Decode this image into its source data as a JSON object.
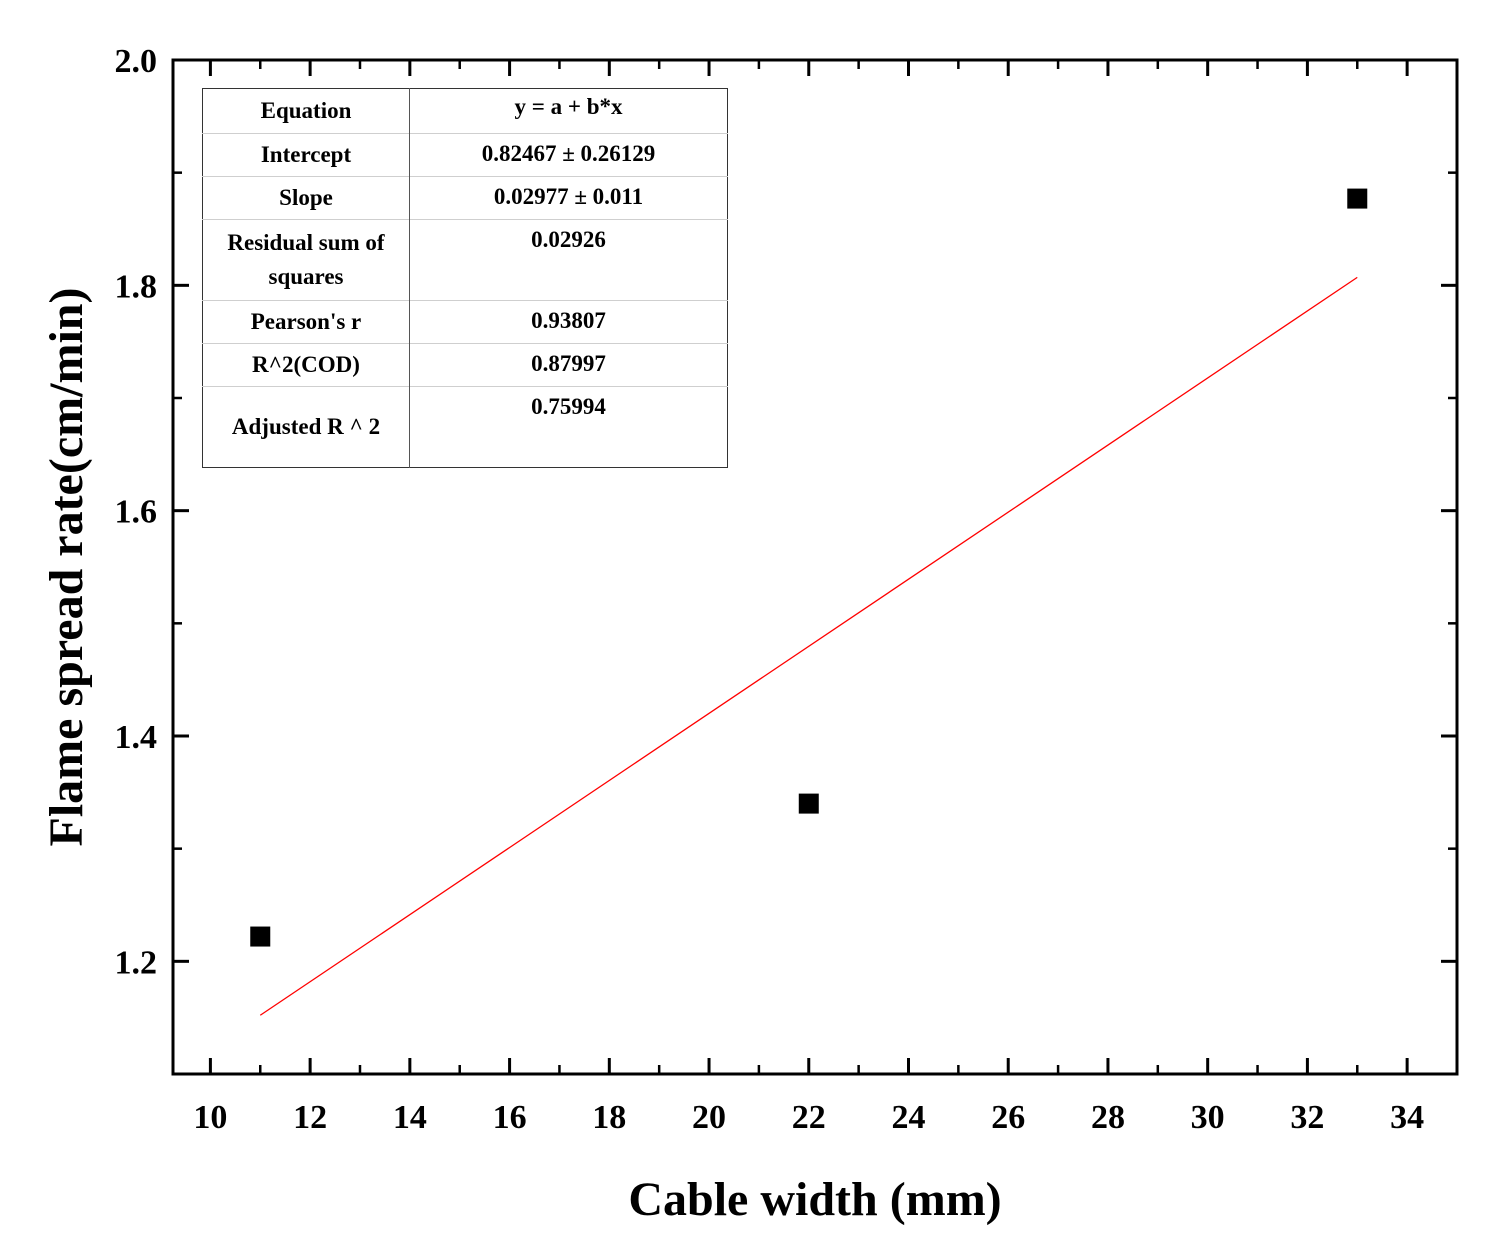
{
  "chart_data": {
    "type": "scatter",
    "xlabel": "Cable width (mm)",
    "ylabel": "Flame spread rate(cm/min)",
    "xlim": [
      9.25,
      35
    ],
    "ylim": [
      1.1,
      2.0
    ],
    "x_ticks": [
      "10",
      "12",
      "14",
      "16",
      "18",
      "20",
      "22",
      "24",
      "26",
      "28",
      "30",
      "32",
      "34"
    ],
    "y_ticks": [
      "1.2",
      "1.4",
      "1.6",
      "1.8",
      "2.0"
    ],
    "grid": false,
    "series": [
      {
        "marker": "square",
        "color": "#000000",
        "points": [
          {
            "x": 11,
            "y": 1.222
          },
          {
            "x": 22,
            "y": 1.34
          },
          {
            "x": 33,
            "y": 1.877
          }
        ]
      }
    ],
    "fit_line": {
      "color": "#ff0000",
      "intercept": 0.82467,
      "slope": 0.02977,
      "x_range": [
        11,
        33
      ]
    },
    "fit_table": [
      {
        "key": "Equation",
        "value": "y = a + b*x"
      },
      {
        "key": "Intercept",
        "value": "0.82467 ± 0.26129"
      },
      {
        "key": "Slope",
        "value": "0.02977 ± 0.011"
      },
      {
        "key": "Residual sum of squares",
        "value": "0.02926"
      },
      {
        "key": "Pearson's r",
        "value": "0.93807"
      },
      {
        "key": "R^2(COD)",
        "value": "0.87997"
      },
      {
        "key": "Adjusted R ^ 2",
        "value": "0.75994"
      }
    ]
  }
}
